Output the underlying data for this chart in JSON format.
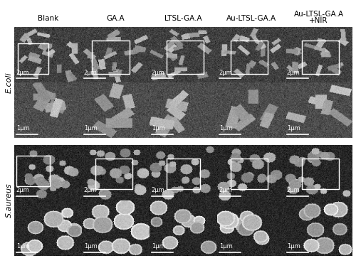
{
  "col_labels": [
    "Blank",
    "GA.A",
    "LTSL-GA.A",
    "Au-LTSL-GA.A",
    "Au-LTSL-GA.A\n+NIR"
  ],
  "row_labels": [
    "E.coli",
    "S.aureus"
  ],
  "scale_bars_row1": [
    "2μm",
    "2μm",
    "2μm",
    "2μm",
    "2μm"
  ],
  "scale_bars_row2": [
    "1μm",
    "1μm",
    "1μm",
    "1μm",
    "1μm"
  ],
  "scale_bars_row3": [
    "2μm",
    "2μm",
    "2μm",
    "2μm",
    "2μm"
  ],
  "scale_bars_row4": [
    "1μm",
    "1μm",
    "1μm",
    "1μm",
    "1μm"
  ],
  "bg_color": "#ffffff",
  "header_fontsize": 7.5,
  "label_fontsize": 8,
  "scalebar_fontsize": 6
}
